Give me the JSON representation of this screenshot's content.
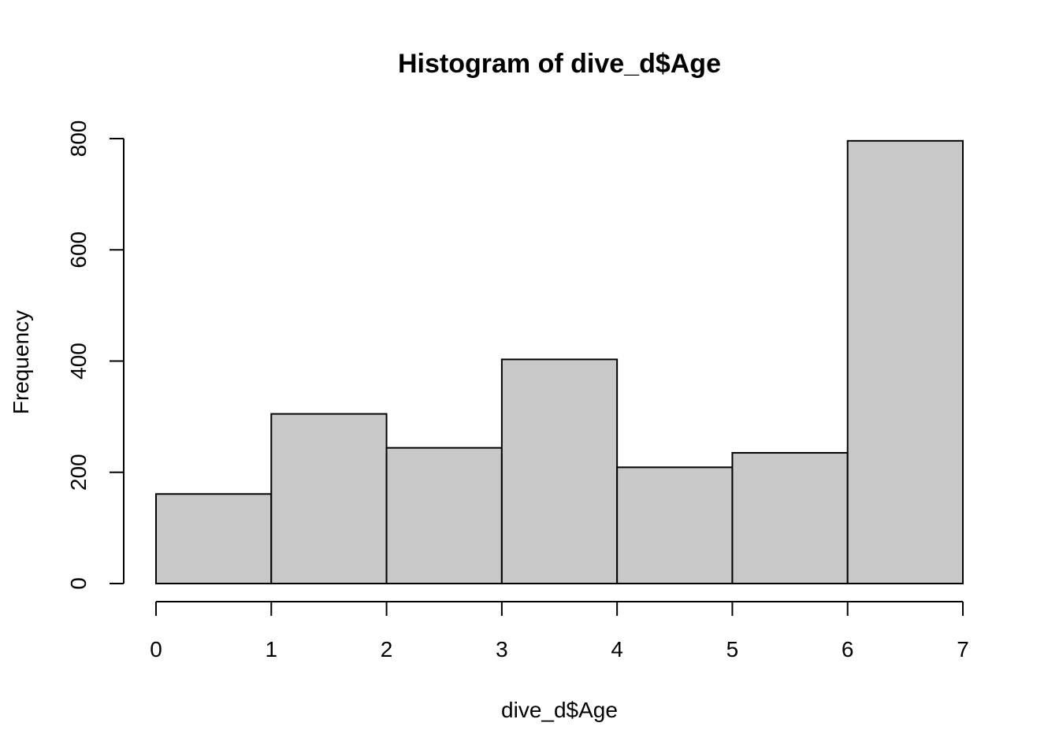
{
  "chart_data": {
    "type": "bar",
    "title": "Histogram of dive_d$Age",
    "xlabel": "dive_d$Age",
    "ylabel": "Frequency",
    "bins": [
      {
        "start": 0,
        "end": 1,
        "value": 161
      },
      {
        "start": 1,
        "end": 2,
        "value": 305
      },
      {
        "start": 2,
        "end": 3,
        "value": 244
      },
      {
        "start": 3,
        "end": 4,
        "value": 403
      },
      {
        "start": 4,
        "end": 5,
        "value": 209
      },
      {
        "start": 5,
        "end": 6,
        "value": 235
      },
      {
        "start": 6,
        "end": 7,
        "value": 796
      }
    ],
    "xticks": [
      0,
      1,
      2,
      3,
      4,
      5,
      6,
      7
    ],
    "yticks": [
      0,
      200,
      400,
      600,
      800
    ],
    "xlim": [
      0,
      7
    ],
    "ylim": [
      0,
      800
    ],
    "grid": false,
    "bar_color": "#c8c8c8",
    "edge_color": "#000000"
  }
}
